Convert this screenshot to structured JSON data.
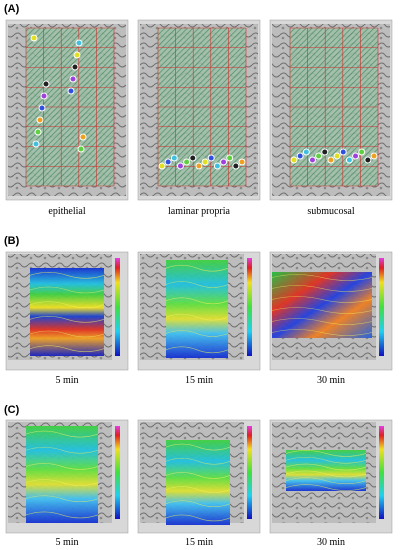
{
  "panels": [
    {
      "label": "(A)",
      "captions": [
        "epithelial",
        "laminar propria",
        "submucosal"
      ]
    },
    {
      "label": "(B)",
      "captions": [
        "5 min",
        "15 min",
        "30 min"
      ]
    },
    {
      "label": "(C)",
      "captions": [
        "5 min",
        "15 min",
        "30 min"
      ]
    }
  ]
}
